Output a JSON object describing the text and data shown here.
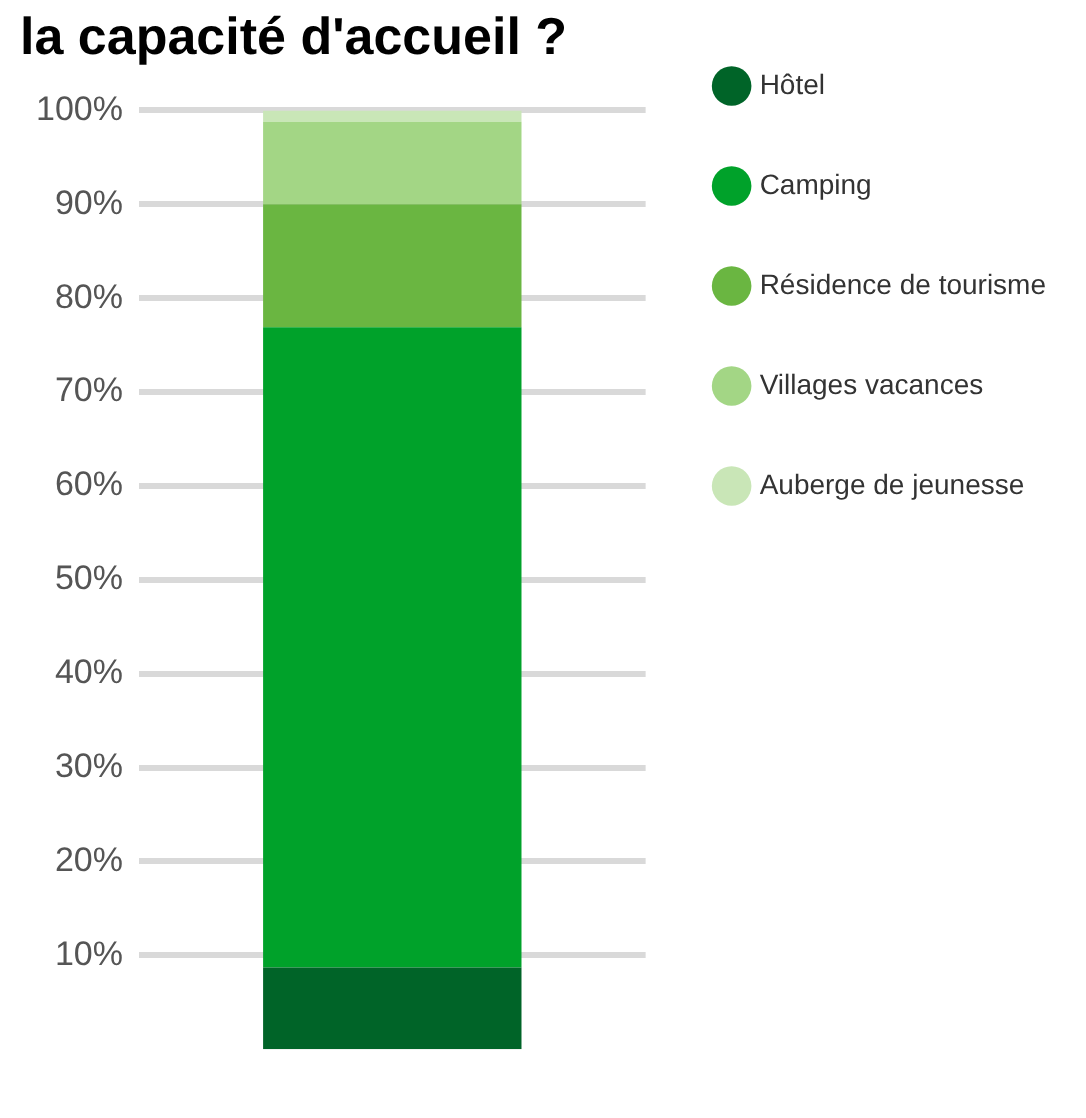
{
  "chart_data": {
    "type": "bar",
    "title": "la capacité d'accueil ?",
    "categories": [
      null
    ],
    "stacked": true,
    "series": [
      {
        "name": "Hôtel",
        "color": "#006428",
        "values": [
          8.7
        ]
      },
      {
        "name": "Camping",
        "color": "#00a22a",
        "values": [
          68.2
        ]
      },
      {
        "name": "Résidence de tourisme",
        "color": "#6ab641",
        "values": [
          13.1
        ]
      },
      {
        "name": "Villages vacances",
        "color": "#a3d685",
        "values": [
          8.8
        ]
      },
      {
        "name": "Auberge de jeunesse",
        "color": "#c9e6b7",
        "values": [
          1.2
        ]
      }
    ],
    "ylim": [
      0,
      100
    ],
    "yticks": [
      {
        "value": 10,
        "label": "10%"
      },
      {
        "value": 20,
        "label": "20%"
      },
      {
        "value": 30,
        "label": "30%"
      },
      {
        "value": 40,
        "label": "40%"
      },
      {
        "value": 50,
        "label": "50%"
      },
      {
        "value": 60,
        "label": "60%"
      },
      {
        "value": 70,
        "label": "70%"
      },
      {
        "value": 80,
        "label": "80%"
      },
      {
        "value": 90,
        "label": "90%"
      },
      {
        "value": 100,
        "label": "100%"
      }
    ],
    "grid": "y",
    "legend": "right"
  }
}
